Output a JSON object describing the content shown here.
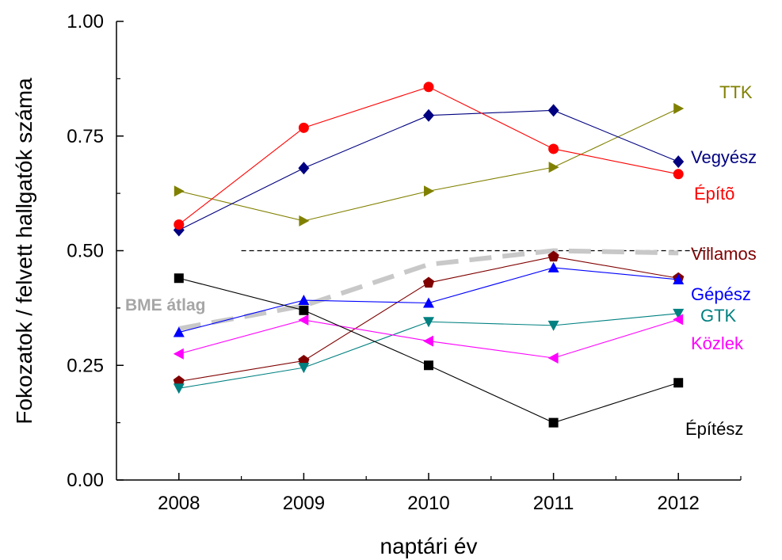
{
  "chart_data": {
    "type": "line",
    "xlabel": "naptári év",
    "ylabel": "Fokozatok / felvett hallgatók száma",
    "x": [
      2008,
      2009,
      2010,
      2011,
      2012
    ],
    "xlim": [
      2007.5,
      2012.5
    ],
    "ylim": [
      0.0,
      1.0
    ],
    "yticks": [
      0.0,
      0.25,
      0.5,
      0.75,
      1.0
    ],
    "ytick_labels": [
      "0.00",
      "0.25",
      "0.50",
      "0.75",
      "1.00"
    ],
    "xtick_labels": [
      "2008",
      "2009",
      "2010",
      "2011",
      "2012"
    ],
    "grid": false,
    "series": [
      {
        "name": "TTK",
        "color": "#808000",
        "marker": "triangle-right",
        "values": [
          0.63,
          0.565,
          0.63,
          0.682,
          0.81
        ]
      },
      {
        "name": "Vegyész",
        "color": "#000080",
        "marker": "diamond",
        "values": [
          0.545,
          0.68,
          0.795,
          0.806,
          0.694
        ]
      },
      {
        "name": "Építõ",
        "color": "#ff0000",
        "marker": "circle",
        "values": [
          0.557,
          0.768,
          0.857,
          0.722,
          0.667
        ]
      },
      {
        "name": "Villamos",
        "color": "#800000",
        "marker": "pentagon",
        "values": [
          0.215,
          0.26,
          0.43,
          0.487,
          0.44
        ]
      },
      {
        "name": "Gépész",
        "color": "#0000ff",
        "marker": "triangle-up",
        "values": [
          0.322,
          0.392,
          0.386,
          0.463,
          0.437
        ]
      },
      {
        "name": "GTK",
        "color": "#008080",
        "marker": "triangle-down",
        "values": [
          0.2,
          0.245,
          0.345,
          0.337,
          0.363
        ]
      },
      {
        "name": "Közlek",
        "color": "#ff00ff",
        "marker": "triangle-left",
        "values": [
          0.275,
          0.349,
          0.303,
          0.266,
          0.35
        ]
      },
      {
        "name": "Építész",
        "color": "#000000",
        "marker": "square",
        "values": [
          0.44,
          0.37,
          0.25,
          0.125,
          0.212
        ]
      }
    ],
    "average": {
      "name": "BME átlag",
      "color": "#c8c8c8",
      "x": [
        2008,
        2009,
        2010,
        2011,
        2012
      ],
      "values": [
        0.33,
        0.38,
        0.47,
        0.5,
        0.495
      ]
    },
    "reference_line": {
      "y": 0.5,
      "x_from": 2008.5,
      "x_to": 2012,
      "color": "#000000"
    }
  }
}
